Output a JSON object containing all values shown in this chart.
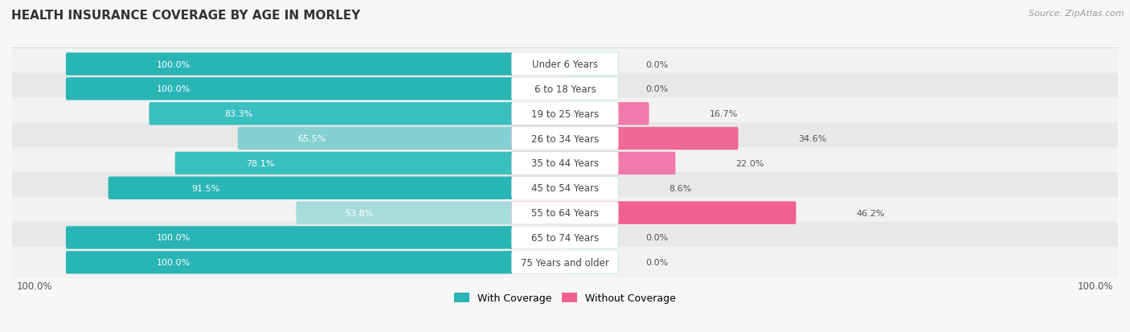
{
  "title": "HEALTH INSURANCE COVERAGE BY AGE IN MORLEY",
  "source": "Source: ZipAtlas.com",
  "categories": [
    "Under 6 Years",
    "6 to 18 Years",
    "19 to 25 Years",
    "26 to 34 Years",
    "35 to 44 Years",
    "45 to 54 Years",
    "55 to 64 Years",
    "65 to 74 Years",
    "75 Years and older"
  ],
  "with_coverage": [
    100.0,
    100.0,
    83.3,
    65.5,
    78.1,
    91.5,
    53.8,
    100.0,
    100.0
  ],
  "without_coverage": [
    0.0,
    0.0,
    16.7,
    34.6,
    22.0,
    8.6,
    46.2,
    0.0,
    0.0
  ],
  "color_with_dark": "#2ab3b3",
  "color_with_mid": "#3ec0c0",
  "color_with_light": "#7dd0d0",
  "color_with_pale": "#a8dede",
  "color_without_dark": "#f06090",
  "color_without_mid": "#f07aaa",
  "color_without_light": "#f8b0c8",
  "color_without_pale": "#f8c8d8",
  "row_bg_even": "#f2f2f2",
  "row_bg_odd": "#e8e8e8",
  "background": "#f7f7f7",
  "legend_with": "With Coverage",
  "legend_without": "Without Coverage",
  "axis_label_left": "100.0%",
  "axis_label_right": "100.0%",
  "title_fontsize": 11,
  "source_fontsize": 8,
  "bar_label_fontsize": 8,
  "cat_label_fontsize": 8.5
}
